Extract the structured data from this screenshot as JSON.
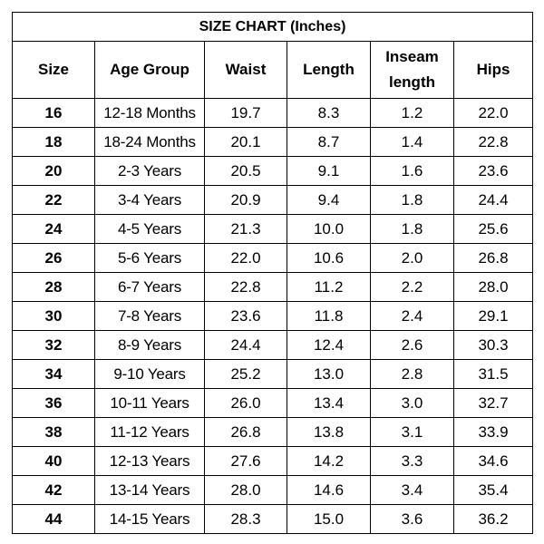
{
  "title": "SIZE CHART (Inches)",
  "headers": {
    "size": "Size",
    "age_group": "Age Group",
    "waist": "Waist",
    "length": "Length",
    "inseam_line1": "Inseam",
    "inseam_line2": "length",
    "hips": "Hips"
  },
  "rows": [
    {
      "size": "16",
      "age": "12-18 Months",
      "waist": "19.7",
      "length": "8.3",
      "inseam": "1.2",
      "hips": "22.0"
    },
    {
      "size": "18",
      "age": "18-24 Months",
      "waist": "20.1",
      "length": "8.7",
      "inseam": "1.4",
      "hips": "22.8"
    },
    {
      "size": "20",
      "age": "2-3 Years",
      "waist": "20.5",
      "length": "9.1",
      "inseam": "1.6",
      "hips": "23.6"
    },
    {
      "size": "22",
      "age": "3-4 Years",
      "waist": "20.9",
      "length": "9.4",
      "inseam": "1.8",
      "hips": "24.4"
    },
    {
      "size": "24",
      "age": "4-5 Years",
      "waist": "21.3",
      "length": "10.0",
      "inseam": "1.8",
      "hips": "25.6"
    },
    {
      "size": "26",
      "age": "5-6 Years",
      "waist": "22.0",
      "length": "10.6",
      "inseam": "2.0",
      "hips": "26.8"
    },
    {
      "size": "28",
      "age": "6-7 Years",
      "waist": "22.8",
      "length": "11.2",
      "inseam": "2.2",
      "hips": "28.0"
    },
    {
      "size": "30",
      "age": "7-8 Years",
      "waist": "23.6",
      "length": "11.8",
      "inseam": "2.4",
      "hips": "29.1"
    },
    {
      "size": "32",
      "age": "8-9 Years",
      "waist": "24.4",
      "length": "12.4",
      "inseam": "2.6",
      "hips": "30.3"
    },
    {
      "size": "34",
      "age": "9-10 Years",
      "waist": "25.2",
      "length": "13.0",
      "inseam": "2.8",
      "hips": "31.5"
    },
    {
      "size": "36",
      "age": "10-11 Years",
      "waist": "26.0",
      "length": "13.4",
      "inseam": "3.0",
      "hips": "32.7"
    },
    {
      "size": "38",
      "age": "11-12 Years",
      "waist": "26.8",
      "length": "13.8",
      "inseam": "3.1",
      "hips": "33.9"
    },
    {
      "size": "40",
      "age": "12-13 Years",
      "waist": "27.6",
      "length": "14.2",
      "inseam": "3.3",
      "hips": "34.6"
    },
    {
      "size": "42",
      "age": "13-14 Years",
      "waist": "28.0",
      "length": "14.6",
      "inseam": "3.4",
      "hips": "35.4"
    },
    {
      "size": "44",
      "age": "14-15 Years",
      "waist": "28.3",
      "length": "15.0",
      "inseam": "3.6",
      "hips": "36.2"
    }
  ]
}
